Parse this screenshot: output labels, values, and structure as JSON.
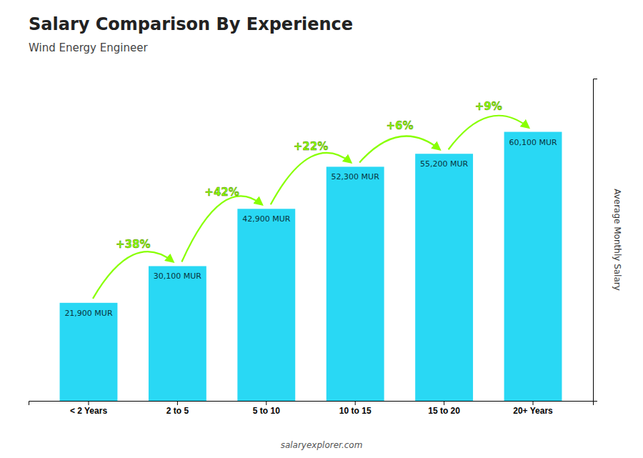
{
  "chart_data": {
    "type": "bar",
    "title": "Salary Comparison By Experience",
    "subtitle": "Wind Energy Engineer",
    "ylabel": "Average Monthly Salary",
    "footer": "salaryexplorer.com",
    "categories": [
      "< 2 Years",
      "2 to 5",
      "5 to 10",
      "10 to 15",
      "15 to 20",
      "20+ Years"
    ],
    "values": [
      21900,
      30100,
      42900,
      52300,
      55200,
      60100
    ],
    "value_labels": [
      "21,900 MUR",
      "30,100 MUR",
      "42,900 MUR",
      "52,300 MUR",
      "55,200 MUR",
      "60,100 MUR"
    ],
    "data_labels": true,
    "color": "#29D8F4",
    "ylim": [
      0,
      72000
    ],
    "grid": false,
    "tick_labels": "x",
    "annotations": [
      {
        "text": "+38%",
        "from": "< 2 Years",
        "to": "2 to 5",
        "color": "#88FF00"
      },
      {
        "text": "+42%",
        "from": "2 to 5",
        "to": "5 to 10",
        "color": "#88FF00"
      },
      {
        "text": "+22%",
        "from": "5 to 10",
        "to": "10 to 15",
        "color": "#88FF00"
      },
      {
        "text": "+6%",
        "from": "10 to 15",
        "to": "15 to 20",
        "color": "#88FF00"
      },
      {
        "text": "+9%",
        "from": "15 to 20",
        "to": "20+ Years",
        "color": "#88FF00"
      }
    ]
  }
}
